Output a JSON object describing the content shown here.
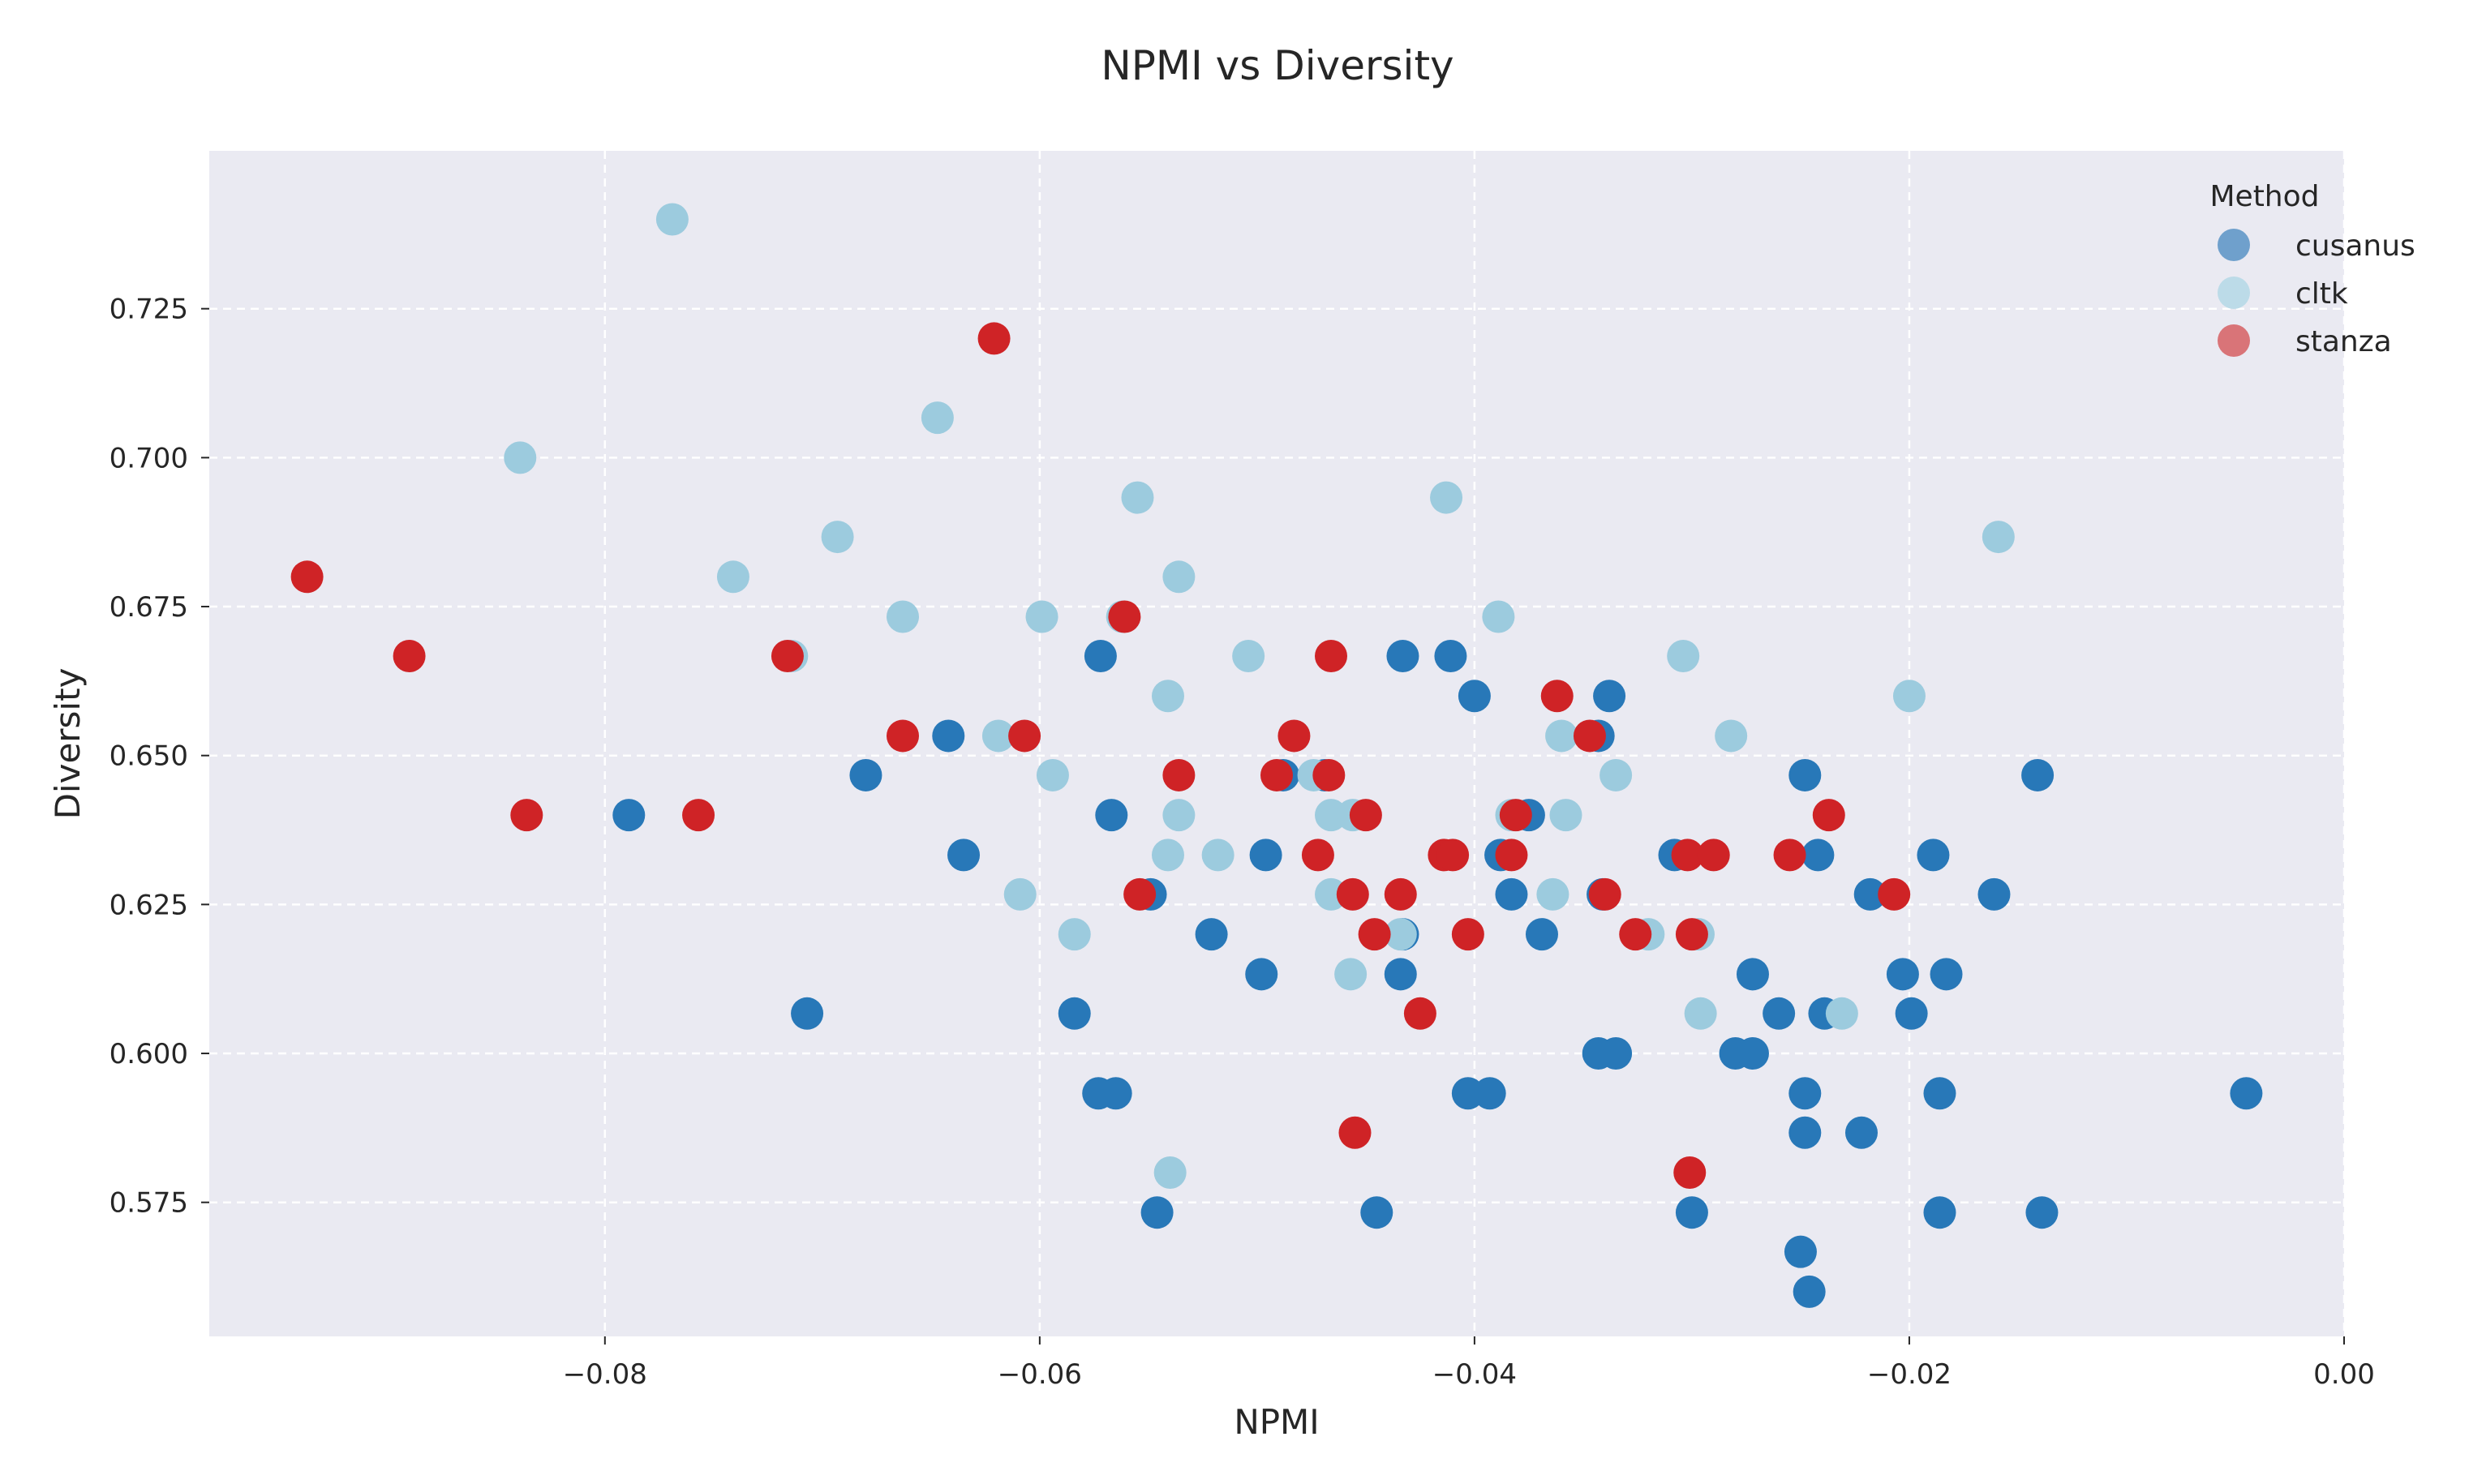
{
  "chart_data": {
    "type": "scatter",
    "title": "NPMI vs Diversity",
    "xlabel": "NPMI",
    "ylabel": "Diversity",
    "xlim": [
      -0.0982,
      0.0
    ],
    "ylim": [
      0.5525,
      0.7515
    ],
    "xticks": [
      -0.08,
      -0.06,
      -0.04,
      -0.02,
      0.0
    ],
    "xtick_labels": [
      "−0.08",
      "−0.06",
      "−0.04",
      "−0.02",
      "0.00"
    ],
    "yticks": [
      0.575,
      0.6,
      0.625,
      0.65,
      0.675,
      0.7,
      0.725
    ],
    "ytick_labels": [
      "0.575",
      "0.600",
      "0.625",
      "0.650",
      "0.675",
      "0.700",
      "0.725"
    ],
    "grid": true,
    "plot_background": "#eaeaf2",
    "legend": {
      "title": "Method",
      "placement": "top-right"
    },
    "series": [
      {
        "name": "cusanus",
        "color": "#2878b8",
        "legend_color": "#6fa0cc",
        "points": [
          [
            -0.0789,
            0.64
          ],
          [
            -0.0707,
            0.6067
          ],
          [
            -0.068,
            0.6467
          ],
          [
            -0.0642,
            0.6533
          ],
          [
            -0.0635,
            0.6333
          ],
          [
            -0.0584,
            0.6067
          ],
          [
            -0.0573,
            0.5933
          ],
          [
            -0.0565,
            0.5933
          ],
          [
            -0.0572,
            0.6667
          ],
          [
            -0.0567,
            0.64
          ],
          [
            -0.0546,
            0.5733
          ],
          [
            -0.0549,
            0.6267
          ],
          [
            -0.0521,
            0.62
          ],
          [
            -0.0498,
            0.6133
          ],
          [
            -0.0496,
            0.6333
          ],
          [
            -0.0488,
            0.6467
          ],
          [
            -0.0469,
            0.6467
          ],
          [
            -0.0445,
            0.5733
          ],
          [
            -0.0434,
            0.6133
          ],
          [
            -0.0433,
            0.62
          ],
          [
            -0.0433,
            0.6667
          ],
          [
            -0.0411,
            0.6667
          ],
          [
            -0.04,
            0.66
          ],
          [
            -0.0403,
            0.5933
          ],
          [
            -0.0393,
            0.5933
          ],
          [
            -0.0388,
            0.6333
          ],
          [
            -0.0383,
            0.6267
          ],
          [
            -0.0375,
            0.64
          ],
          [
            -0.0369,
            0.62
          ],
          [
            -0.0343,
            0.6
          ],
          [
            -0.0343,
            0.6533
          ],
          [
            -0.0335,
            0.6
          ],
          [
            -0.0338,
            0.66
          ],
          [
            -0.0341,
            0.6267
          ],
          [
            -0.0308,
            0.6333
          ],
          [
            -0.03,
            0.5733
          ],
          [
            -0.028,
            0.6
          ],
          [
            -0.0272,
            0.6
          ],
          [
            -0.0272,
            0.6133
          ],
          [
            -0.026,
            0.6067
          ],
          [
            -0.025,
            0.5667
          ],
          [
            -0.0246,
            0.56
          ],
          [
            -0.0248,
            0.5867
          ],
          [
            -0.0248,
            0.5933
          ],
          [
            -0.0248,
            0.6467
          ],
          [
            -0.0242,
            0.6333
          ],
          [
            -0.0239,
            0.6067
          ],
          [
            -0.0222,
            0.5867
          ],
          [
            -0.0218,
            0.6267
          ],
          [
            -0.0203,
            0.6133
          ],
          [
            -0.0199,
            0.6067
          ],
          [
            -0.0186,
            0.5733
          ],
          [
            -0.0186,
            0.5933
          ],
          [
            -0.0183,
            0.6133
          ],
          [
            -0.0189,
            0.6333
          ],
          [
            -0.0161,
            0.6267
          ],
          [
            -0.0141,
            0.6467
          ],
          [
            -0.0139,
            0.5733
          ],
          [
            -0.0045,
            0.5933
          ]
        ]
      },
      {
        "name": "cltk",
        "color": "#9ccbde",
        "legend_color": "#bcdbe8",
        "points": [
          [
            -0.0769,
            0.74
          ],
          [
            -0.0839,
            0.7
          ],
          [
            -0.0741,
            0.68
          ],
          [
            -0.0714,
            0.6667
          ],
          [
            -0.0693,
            0.6867
          ],
          [
            -0.0663,
            0.6733
          ],
          [
            -0.0647,
            0.7067
          ],
          [
            -0.0619,
            0.6533
          ],
          [
            -0.0609,
            0.6267
          ],
          [
            -0.0599,
            0.6733
          ],
          [
            -0.0594,
            0.6467
          ],
          [
            -0.0584,
            0.62
          ],
          [
            -0.0562,
            0.6733
          ],
          [
            -0.0555,
            0.6933
          ],
          [
            -0.0541,
            0.66
          ],
          [
            -0.0541,
            0.6333
          ],
          [
            -0.0536,
            0.64
          ],
          [
            -0.0536,
            0.68
          ],
          [
            -0.054,
            0.58
          ],
          [
            -0.0518,
            0.6333
          ],
          [
            -0.0504,
            0.6667
          ],
          [
            -0.0474,
            0.6467
          ],
          [
            -0.0466,
            0.64
          ],
          [
            -0.0466,
            0.6267
          ],
          [
            -0.0457,
            0.6133
          ],
          [
            -0.0456,
            0.64
          ],
          [
            -0.0434,
            0.62
          ],
          [
            -0.0413,
            0.6933
          ],
          [
            -0.0389,
            0.6733
          ],
          [
            -0.0383,
            0.64
          ],
          [
            -0.0364,
            0.6267
          ],
          [
            -0.036,
            0.6533
          ],
          [
            -0.0358,
            0.64
          ],
          [
            -0.0335,
            0.6467
          ],
          [
            -0.032,
            0.62
          ],
          [
            -0.0304,
            0.6667
          ],
          [
            -0.0297,
            0.62
          ],
          [
            -0.0296,
            0.6067
          ],
          [
            -0.0282,
            0.6533
          ],
          [
            -0.0231,
            0.6067
          ],
          [
            -0.02,
            0.66
          ],
          [
            -0.0159,
            0.6867
          ]
        ]
      },
      {
        "name": "stanza",
        "color": "#cf2326",
        "legend_color": "#d97478",
        "points": [
          [
            -0.0937,
            0.68
          ],
          [
            -0.089,
            0.6667
          ],
          [
            -0.0836,
            0.64
          ],
          [
            -0.0757,
            0.64
          ],
          [
            -0.0716,
            0.6667
          ],
          [
            -0.0663,
            0.6533
          ],
          [
            -0.0621,
            0.72
          ],
          [
            -0.0607,
            0.6533
          ],
          [
            -0.0561,
            0.6733
          ],
          [
            -0.0554,
            0.6267
          ],
          [
            -0.0536,
            0.6467
          ],
          [
            -0.0483,
            0.6533
          ],
          [
            -0.0491,
            0.6467
          ],
          [
            -0.0472,
            0.6333
          ],
          [
            -0.0467,
            0.6467
          ],
          [
            -0.0466,
            0.6667
          ],
          [
            -0.0456,
            0.6267
          ],
          [
            -0.0455,
            0.5867
          ],
          [
            -0.045,
            0.64
          ],
          [
            -0.0446,
            0.62
          ],
          [
            -0.0434,
            0.6267
          ],
          [
            -0.0425,
            0.6067
          ],
          [
            -0.0414,
            0.6333
          ],
          [
            -0.041,
            0.6333
          ],
          [
            -0.0403,
            0.62
          ],
          [
            -0.0383,
            0.6333
          ],
          [
            -0.0381,
            0.64
          ],
          [
            -0.0362,
            0.66
          ],
          [
            -0.0347,
            0.6533
          ],
          [
            -0.034,
            0.6267
          ],
          [
            -0.0326,
            0.62
          ],
          [
            -0.0302,
            0.6333
          ],
          [
            -0.03,
            0.62
          ],
          [
            -0.0301,
            0.58
          ],
          [
            -0.029,
            0.6333
          ],
          [
            -0.0255,
            0.6333
          ],
          [
            -0.0237,
            0.64
          ],
          [
            -0.0207,
            0.6267
          ]
        ]
      }
    ]
  }
}
